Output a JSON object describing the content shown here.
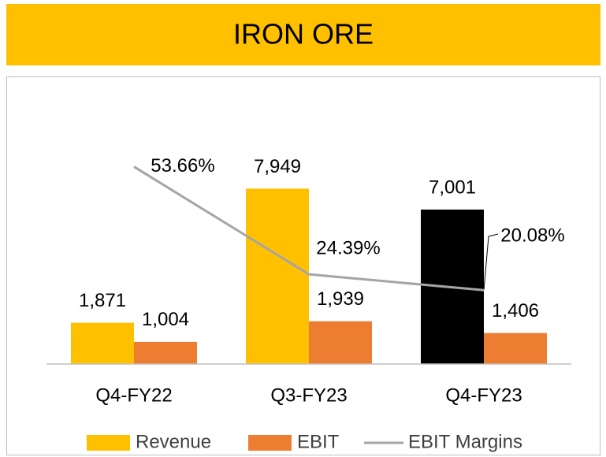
{
  "chart_data": {
    "type": "bar",
    "title": "IRON ORE",
    "categories": [
      "Q4-FY22",
      "Q3-FY23",
      "Q4-FY23"
    ],
    "ylim": [
      0,
      10000
    ],
    "y2lim": [
      0,
      60
    ],
    "series": [
      {
        "name": "Revenue",
        "type": "bar",
        "color": "#FFC000",
        "point_colors": [
          "#FFC000",
          "#FFC000",
          "#000000"
        ],
        "values": [
          1871,
          7949,
          7001
        ],
        "value_labels": [
          "1,871",
          "7,949",
          "7,001"
        ]
      },
      {
        "name": "EBIT",
        "type": "bar",
        "color": "#ED7D31",
        "values": [
          1004,
          1939,
          1406
        ],
        "value_labels": [
          "1,004",
          "1,939",
          "1,406"
        ]
      },
      {
        "name": "EBIT Margins",
        "type": "line",
        "axis": "y2",
        "color": "#A5A5A5",
        "values": [
          53.66,
          24.39,
          20.08
        ],
        "value_labels": [
          "53.66%",
          "24.39%",
          "20.08%"
        ]
      }
    ],
    "legend": "bottom"
  }
}
